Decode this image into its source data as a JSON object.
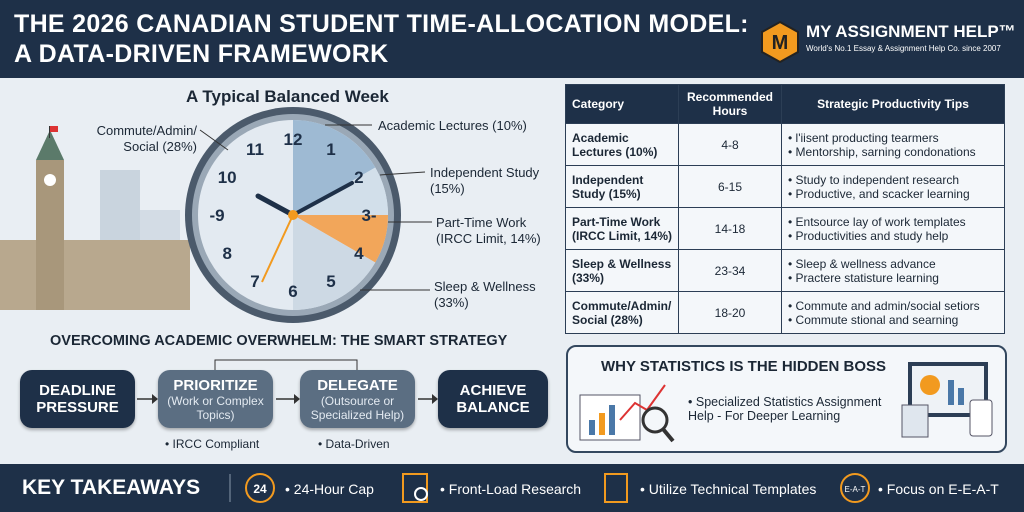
{
  "header": {
    "title_line1": "THE 2026 CANADIAN STUDENT TIME-ALLOCATION MODEL:",
    "title_line2": "A DATA-DRIVEN FRAMEWORK",
    "logo_mark": "M",
    "logo_name": "MY ASSIGNMENT HELP™",
    "logo_tagline": "World's No.1 Essay & Assignment Help Co. since 2007"
  },
  "week": {
    "title": "A Typical Balanced Week",
    "labels": [
      "Commute/Admin/ Social (28%)",
      "Academic Lectures (10%)",
      "Independent Study (15%)",
      "Part-Time Work (IRCC Limit, 14%)",
      "Sleep & Wellness (33%)"
    ],
    "clock_numbers": [
      "12",
      "1",
      "2",
      "3-",
      "4",
      "5",
      "6",
      "7",
      "8",
      "-9",
      "10",
      "11"
    ]
  },
  "table": {
    "headers": [
      "Category",
      "Recommended Hours",
      "Strategic Productivity Tips"
    ],
    "rows": [
      {
        "category": "Academic Lectures (10%)",
        "hours": "4-8",
        "tips": [
          "l'iisent producting tearmers",
          "Mentorship, sarning condonations"
        ]
      },
      {
        "category": "Independent Study (15%)",
        "hours": "6-15",
        "tips": [
          "Study to independent research",
          "Productive, and scacker learning"
        ]
      },
      {
        "category": "Part-Time Work (IRCC Limit, 14%)",
        "hours": "14-18",
        "tips": [
          "Entsource lay of work templates",
          "Productivities and study help"
        ]
      },
      {
        "category": "Sleep & Wellness (33%)",
        "hours": "23-34",
        "tips": [
          "Sleep & wellness advance",
          "Practere statisture learning"
        ]
      },
      {
        "category": "Commute/Admin/ Social (28%)",
        "hours": "18-20",
        "tips": [
          "Commute and admin/social setiors",
          "Commute stional and searning"
        ]
      }
    ]
  },
  "strategy": {
    "title": "OVERCOMING ACADEMIC OVERWHELM: THE SMART STRATEGY",
    "steps": [
      {
        "title": "DEADLINE PRESSURE"
      },
      {
        "title": "PRIORITIZE",
        "subtitle": "(Work or Complex Topics)"
      },
      {
        "title": "DELEGATE",
        "subtitle": "(Outsource or Specialized Help)"
      },
      {
        "title": "ACHIEVE BALANCE"
      }
    ],
    "notes": [
      "IRCC Compliant",
      "Data-Driven"
    ]
  },
  "statistics": {
    "title": "WHY STATISTICS IS THE HIDDEN BOSS",
    "bullet": "Specialized Statistics Assignment Help - For Deeper Learning"
  },
  "footer": {
    "title": "KEY TAKEAWAYS",
    "icon_text": [
      "24",
      "E-A-T"
    ],
    "items": [
      "24-Hour Cap",
      "Front-Load Research",
      "Utilize Technical Templates",
      "Focus on E-E-A-T"
    ]
  }
}
